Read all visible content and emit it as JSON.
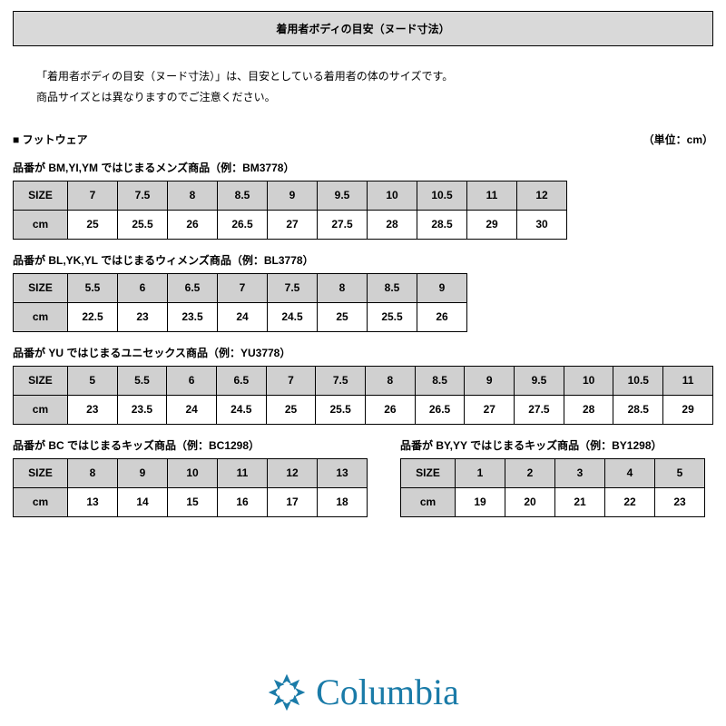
{
  "header_title": "着用者ボディの目安（ヌード寸法）",
  "intro_line1": "「着用者ボディの目安（ヌード寸法）」は、目安としている着用者の体のサイズです。",
  "intro_line2": "商品サイズとは異なりますのでご注意ください。",
  "section_label": "■ フットウェア",
  "unit_label": "（単位：cm）",
  "row_label_size": "SIZE",
  "row_label_cm": "cm",
  "logo_text": "Columbia",
  "style": {
    "border_color": "#000000",
    "header_bg": "#d9d9d9",
    "cell_header_bg": "#d0d0d0",
    "page_bg": "#ffffff",
    "text_color": "#000000",
    "logo_color": "#1a7ba8",
    "font_family": "MS PGothic",
    "label_cell_w": 60,
    "table1_cell_w": 55,
    "table2_cell_w": 55,
    "table3_cell_w": 54.8,
    "table4_cell_w": 55,
    "table5_cell_w": 55
  },
  "tables": {
    "mens": {
      "caption": "品番が BM,YI,YM ではじまるメンズ商品（例：BM3778）",
      "sizes": [
        "7",
        "7.5",
        "8",
        "8.5",
        "9",
        "9.5",
        "10",
        "10.5",
        "11",
        "12"
      ],
      "cms": [
        "25",
        "25.5",
        "26",
        "26.5",
        "27",
        "27.5",
        "28",
        "28.5",
        "29",
        "30"
      ]
    },
    "womens": {
      "caption": "品番が BL,YK,YL ではじまるウィメンズ商品（例：BL3778）",
      "sizes": [
        "5.5",
        "6",
        "6.5",
        "7",
        "7.5",
        "8",
        "8.5",
        "9"
      ],
      "cms": [
        "22.5",
        "23",
        "23.5",
        "24",
        "24.5",
        "25",
        "25.5",
        "26"
      ]
    },
    "unisex": {
      "caption": "品番が YU ではじまるユニセックス商品（例：YU3778）",
      "sizes": [
        "5",
        "5.5",
        "6",
        "6.5",
        "7",
        "7.5",
        "8",
        "8.5",
        "9",
        "9.5",
        "10",
        "10.5",
        "11"
      ],
      "cms": [
        "23",
        "23.5",
        "24",
        "24.5",
        "25",
        "25.5",
        "26",
        "26.5",
        "27",
        "27.5",
        "28",
        "28.5",
        "29"
      ]
    },
    "kids_bc": {
      "caption": "品番が BC ではじまるキッズ商品（例：BC1298）",
      "sizes": [
        "8",
        "9",
        "10",
        "11",
        "12",
        "13"
      ],
      "cms": [
        "13",
        "14",
        "15",
        "16",
        "17",
        "18"
      ]
    },
    "kids_by": {
      "caption": "品番が BY,YY ではじまるキッズ商品（例：BY1298）",
      "sizes": [
        "1",
        "2",
        "3",
        "4",
        "5"
      ],
      "cms": [
        "19",
        "20",
        "21",
        "22",
        "23"
      ]
    }
  }
}
